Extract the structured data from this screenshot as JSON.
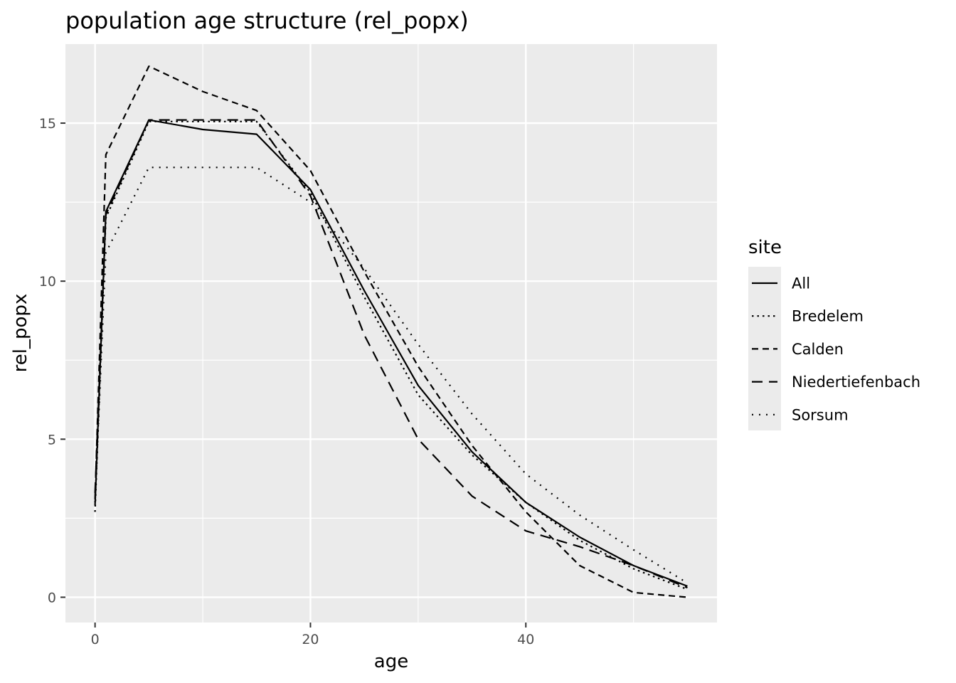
{
  "chart_data": {
    "type": "line",
    "title": "population age structure (rel_popx)",
    "xlabel": "age",
    "ylabel": "rel_popx",
    "xlim": [
      -2.75,
      57.75
    ],
    "ylim": [
      -0.8,
      17.5
    ],
    "x_ticks": [
      0,
      20,
      40
    ],
    "y_ticks": [
      0,
      5,
      10,
      15
    ],
    "x_minor": [
      10,
      30,
      50
    ],
    "y_minor": [
      2.5,
      7.5,
      12.5
    ],
    "grid": true,
    "background": "#ebebeb",
    "legend": {
      "title": "site",
      "position": "right"
    },
    "series": [
      {
        "name": "All",
        "dash": "solid",
        "x": [
          0,
          1,
          5,
          10,
          15,
          20,
          25,
          30,
          35,
          40,
          45,
          50,
          55
        ],
        "y": [
          2.9,
          12.2,
          15.1,
          14.8,
          14.65,
          12.9,
          9.7,
          6.7,
          4.6,
          3.0,
          1.9,
          1.0,
          0.35
        ]
      },
      {
        "name": "Bredelem",
        "dash": "dotted",
        "x": [
          0,
          1,
          5,
          10,
          15,
          20,
          25,
          30,
          35,
          40,
          45,
          50,
          55
        ],
        "y": [
          2.7,
          12.0,
          15.05,
          15.05,
          15.05,
          12.8,
          9.5,
          6.4,
          4.5,
          3.0,
          1.8,
          0.9,
          0.25
        ]
      },
      {
        "name": "Calden",
        "dash": "dashed",
        "x": [
          0,
          1,
          5,
          10,
          15,
          20,
          25,
          30,
          35,
          40,
          45,
          50,
          55
        ],
        "y": [
          3.1,
          14.0,
          16.8,
          16.0,
          15.4,
          13.5,
          10.3,
          7.3,
          4.8,
          2.7,
          1.0,
          0.15,
          0.0
        ]
      },
      {
        "name": "Niedertiefenbach",
        "dash": "longdash",
        "x": [
          0,
          1,
          5,
          10,
          15,
          20,
          25,
          30,
          35,
          40,
          45,
          50,
          55
        ],
        "y": [
          3.3,
          12.1,
          15.1,
          15.1,
          15.1,
          12.7,
          8.3,
          5.0,
          3.2,
          2.1,
          1.6,
          1.0,
          0.3
        ]
      },
      {
        "name": "Sorsum",
        "dash": "dotted-sparse",
        "x": [
          0,
          1,
          5,
          10,
          15,
          20,
          25,
          30,
          35,
          40,
          45,
          50,
          55
        ],
        "y": [
          3.0,
          10.9,
          13.6,
          13.6,
          13.6,
          12.5,
          10.4,
          8.0,
          5.8,
          3.9,
          2.6,
          1.5,
          0.45
        ]
      }
    ]
  }
}
